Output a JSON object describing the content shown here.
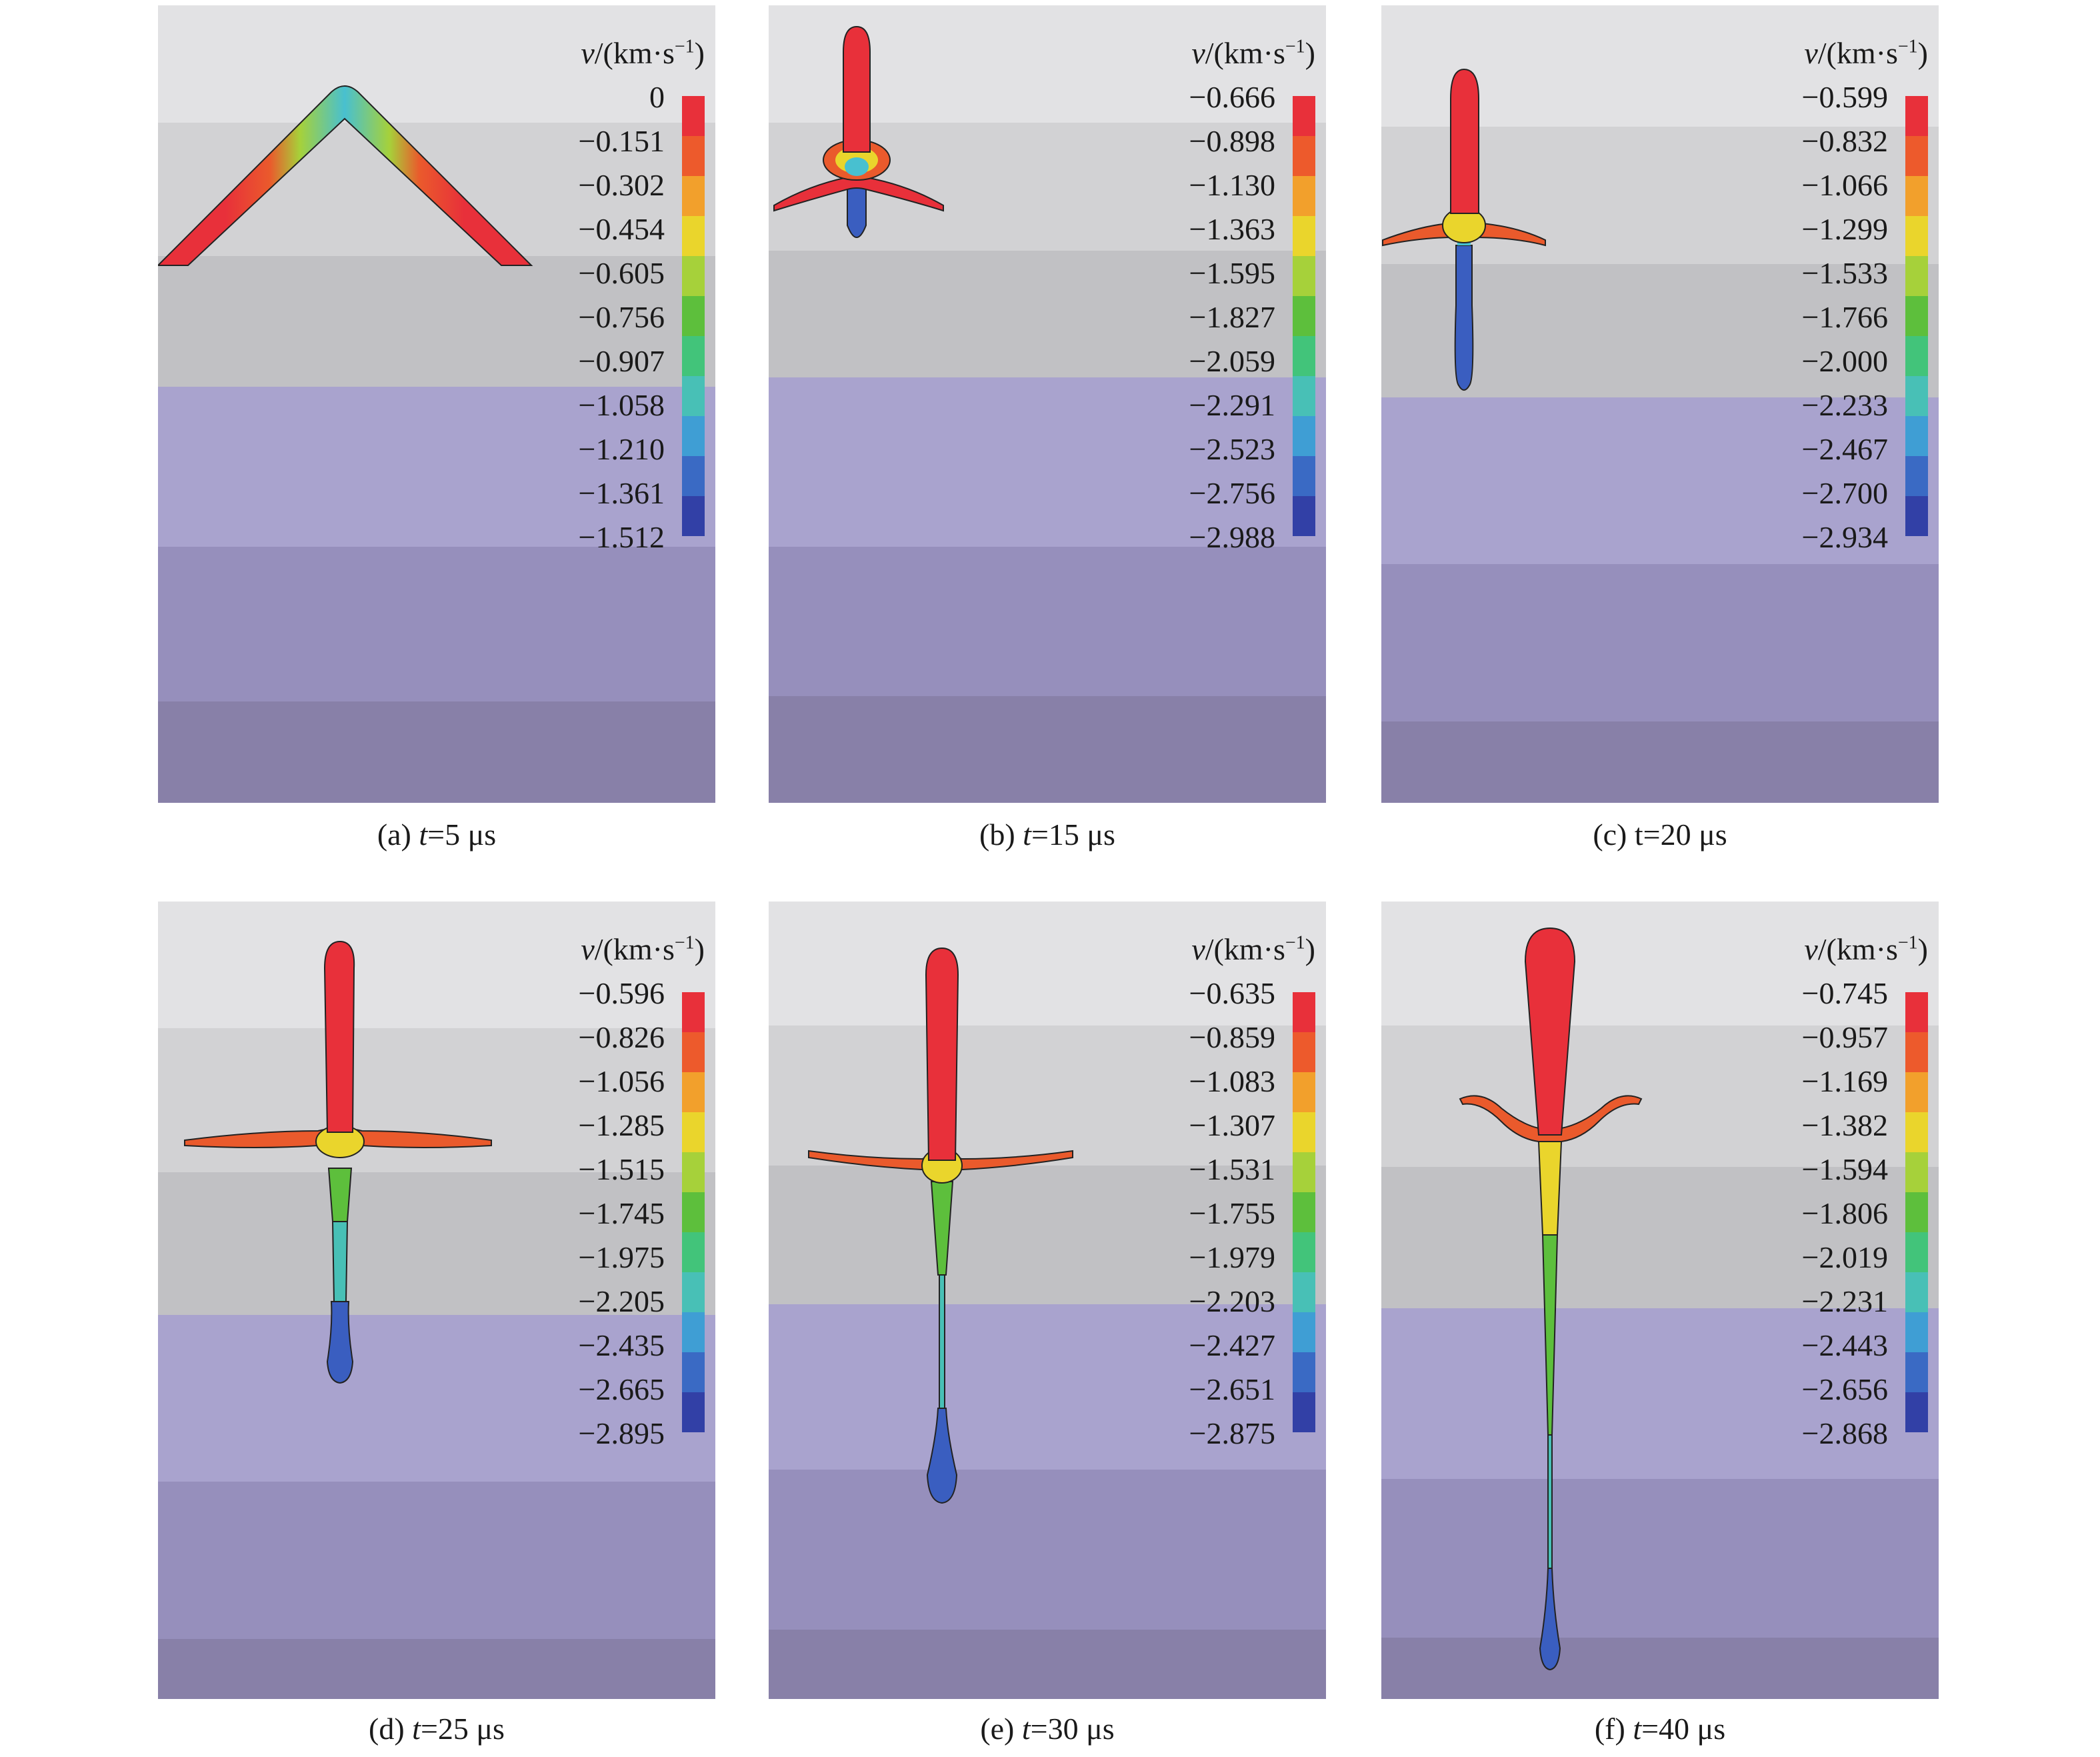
{
  "legend": {
    "variable": "v",
    "unit": "/(km·s",
    "exponent": "−1",
    "close": ")"
  },
  "panels": [
    {
      "label": "(a) ",
      "var": "t",
      "time": "=5 μs",
      "ticks": [
        "0",
        "−0.151",
        "−0.302",
        "−0.454",
        "−0.605",
        "−0.756",
        "−0.907",
        "−1.058",
        "−1.210",
        "−1.361",
        "−1.512"
      ]
    },
    {
      "label": "(b) ",
      "var": "t",
      "time": "=15 μs",
      "ticks": [
        "−0.666",
        "−0.898",
        "−1.130",
        "−1.363",
        "−1.595",
        "−1.827",
        "−2.059",
        "−2.291",
        "−2.523",
        "−2.756",
        "−2.988"
      ]
    },
    {
      "label": "(c) t",
      "var": "",
      "time": "=20 μs",
      "ticks": [
        "−0.599",
        "−0.832",
        "−1.066",
        "−1.299",
        "−1.533",
        "−1.766",
        "−2.000",
        "−2.233",
        "−2.467",
        "−2.700",
        "−2.934"
      ]
    },
    {
      "label": "(d) ",
      "var": "t",
      "time": "=25 μs",
      "ticks": [
        "−0.596",
        "−0.826",
        "−1.056",
        "−1.285",
        "−1.515",
        "−1.745",
        "−1.975",
        "−2.205",
        "−2.435",
        "−2.665",
        "−2.895"
      ]
    },
    {
      "label": "(e) ",
      "var": "t",
      "time": "=30 μs",
      "ticks": [
        "−0.635",
        "−0.859",
        "−1.083",
        "−1.307",
        "−1.531",
        "−1.755",
        "−1.979",
        "−2.203",
        "−2.427",
        "−2.651",
        "−2.875"
      ]
    },
    {
      "label": "(f) ",
      "var": "t",
      "time": "=40 μs",
      "ticks": [
        "−0.745",
        "−0.957",
        "−1.169",
        "−1.382",
        "−1.594",
        "−1.806",
        "−2.019",
        "−2.231",
        "−2.443",
        "−2.656",
        "−2.868"
      ]
    }
  ],
  "colors": {
    "layers": [
      "#e2e2e4",
      "#d2d2d4",
      "#c1c1c4",
      "#a9a3ce",
      "#968fbc",
      "#8880a8"
    ],
    "colormap": [
      "#e8303a",
      "#ed5a2c",
      "#f2a02c",
      "#ead52c",
      "#a6d13a",
      "#5dbf3c",
      "#42c47a",
      "#48c0b6",
      "#3f9ed4",
      "#3a6ac4",
      "#3240a6"
    ]
  }
}
